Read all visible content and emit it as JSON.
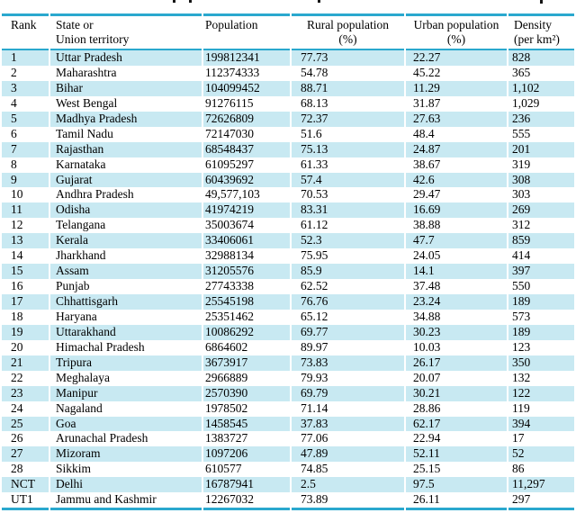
{
  "colors": {
    "accent_line": "#2aa8ce",
    "row_highlight": "#c8e9f2",
    "text": "#000000"
  },
  "table": {
    "columns": [
      {
        "key": "rank",
        "line1": "Rank",
        "line2": ""
      },
      {
        "key": "state",
        "line1": "State or",
        "line2": "Union territory"
      },
      {
        "key": "population",
        "line1": "Population",
        "line2": ""
      },
      {
        "key": "rural",
        "line1": "Rural population",
        "line2": "(%)"
      },
      {
        "key": "urban",
        "line1": "Urban population",
        "line2": "(%)"
      },
      {
        "key": "density",
        "line1": "Density",
        "line2": "(per km²)"
      }
    ],
    "rows": [
      [
        "1",
        "Uttar Pradesh",
        "199812341",
        "77.73",
        "22.27",
        "828"
      ],
      [
        "2",
        "Maharashtra",
        "112374333",
        "54.78",
        "45.22",
        "365"
      ],
      [
        "3",
        "Bihar",
        "104099452",
        "88.71",
        "11.29",
        "1,102"
      ],
      [
        "4",
        "West Bengal",
        "91276115",
        "68.13",
        "31.87",
        "1,029"
      ],
      [
        "5",
        "Madhya Pradesh",
        "72626809",
        "72.37",
        "27.63",
        "236"
      ],
      [
        "6",
        "Tamil Nadu",
        "72147030",
        "51.6",
        "48.4",
        "555"
      ],
      [
        "7",
        "Rajasthan",
        "68548437",
        "75.13",
        "24.87",
        "201"
      ],
      [
        "8",
        "Karnataka",
        "61095297",
        "61.33",
        "38.67",
        "319"
      ],
      [
        "9",
        "Gujarat",
        "60439692",
        "57.4",
        "42.6",
        "308"
      ],
      [
        "10",
        "Andhra Pradesh",
        "49,577,103",
        "70.53",
        "29.47",
        "303"
      ],
      [
        "11",
        "Odisha",
        "41974219",
        "83.31",
        "16.69",
        "269"
      ],
      [
        "12",
        "Telangana",
        "35003674",
        "61.12",
        "38.88",
        "312"
      ],
      [
        "13",
        "Kerala",
        "33406061",
        "52.3",
        "47.7",
        "859"
      ],
      [
        "14",
        "Jharkhand",
        "32988134",
        "75.95",
        "24.05",
        "414"
      ],
      [
        "15",
        "Assam",
        "31205576",
        "85.9",
        "14.1",
        "397"
      ],
      [
        "16",
        "Punjab",
        "27743338",
        "62.52",
        "37.48",
        "550"
      ],
      [
        "17",
        "Chhattisgarh",
        "25545198",
        "76.76",
        "23.24",
        "189"
      ],
      [
        "18",
        "Haryana",
        "25351462",
        "65.12",
        "34.88",
        "573"
      ],
      [
        "19",
        "Uttarakhand",
        "10086292",
        "69.77",
        "30.23",
        "189"
      ],
      [
        "20",
        "Himachal Pradesh",
        "6864602",
        "89.97",
        "10.03",
        "123"
      ],
      [
        "21",
        "Tripura",
        "3673917",
        "73.83",
        "26.17",
        "350"
      ],
      [
        "22",
        "Meghalaya",
        "2966889",
        "79.93",
        "20.07",
        "132"
      ],
      [
        "23",
        "Manipur",
        "2570390",
        "69.79",
        "30.21",
        "122"
      ],
      [
        "24",
        "Nagaland",
        "1978502",
        "71.14",
        "28.86",
        "119"
      ],
      [
        "25",
        "Goa",
        "1458545",
        "37.83",
        "62.17",
        "394"
      ],
      [
        "26",
        "Arunachal Pradesh",
        "1383727",
        "77.06",
        "22.94",
        "17"
      ],
      [
        "27",
        "Mizoram",
        "1097206",
        "47.89",
        "52.11",
        "52"
      ],
      [
        "28",
        "Sikkim",
        "610577",
        "74.85",
        "25.15",
        "86"
      ],
      [
        "NCT",
        "Delhi",
        "16787941",
        "2.5",
        "97.5",
        "11,297"
      ],
      [
        "UT1",
        "Jammu and Kashmir",
        "12267032",
        "73.89",
        "26.11",
        "297"
      ]
    ]
  }
}
